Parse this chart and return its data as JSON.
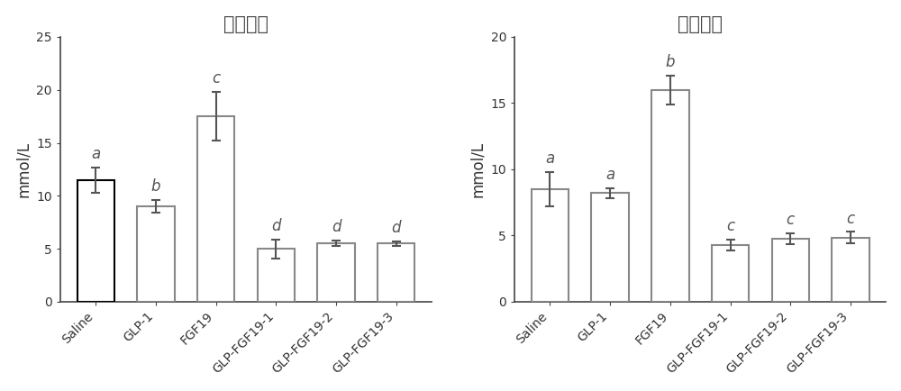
{
  "left_title": "甘油三酯",
  "right_title": "总胆固醇",
  "ylabel": "mmol/L",
  "categories": [
    "Saline",
    "GLP-1",
    "FGF19",
    "GLP-FGF19-1",
    "GLP-FGF19-2",
    "GLP-FGF19-3"
  ],
  "left_values": [
    11.5,
    9.0,
    17.5,
    5.0,
    5.5,
    5.5
  ],
  "left_errors": [
    1.2,
    0.6,
    2.3,
    0.9,
    0.25,
    0.22
  ],
  "left_letters": [
    "a",
    "b",
    "c",
    "d",
    "d",
    "d"
  ],
  "left_ylim": [
    0,
    25
  ],
  "left_yticks": [
    0,
    5,
    10,
    15,
    20,
    25
  ],
  "right_values": [
    8.5,
    8.2,
    16.0,
    4.3,
    4.75,
    4.85
  ],
  "right_errors": [
    1.3,
    0.35,
    1.1,
    0.4,
    0.42,
    0.42
  ],
  "right_letters": [
    "a",
    "a",
    "b",
    "c",
    "c",
    "c"
  ],
  "right_ylim": [
    0,
    20
  ],
  "right_yticks": [
    0,
    5,
    10,
    15,
    20
  ],
  "bar_color": "#ffffff",
  "left_bar_edge_colors": [
    "#000000",
    "#888888",
    "#888888",
    "#888888",
    "#888888",
    "#888888"
  ],
  "right_bar_edge_colors": [
    "#888888",
    "#888888",
    "#888888",
    "#888888",
    "#888888",
    "#888888"
  ],
  "error_color": "#555555",
  "letter_color": "#555555",
  "title_fontsize": 15,
  "label_fontsize": 12,
  "tick_fontsize": 10,
  "letter_fontsize": 12,
  "bar_width": 0.62,
  "background_color": "#ffffff"
}
